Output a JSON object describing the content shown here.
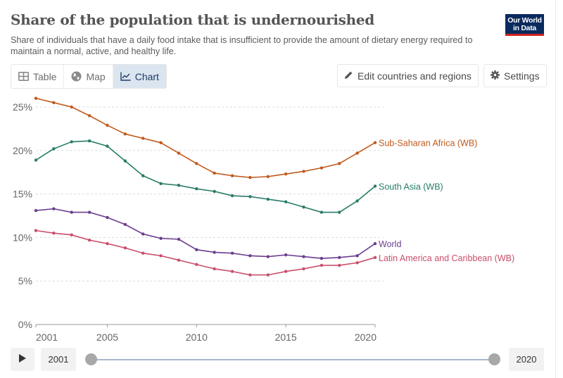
{
  "header": {
    "title": "Share of the population that is undernourished",
    "subtitle": "Share of individuals that have a daily food intake that is insufficient to provide the amount of dietary energy required to maintain a normal, active, and healthy life.",
    "logo_line1": "Our World",
    "logo_line2": "in Data"
  },
  "tabs": [
    {
      "label": "Table",
      "icon": "table-icon",
      "active": false
    },
    {
      "label": "Map",
      "icon": "globe-icon",
      "active": false
    },
    {
      "label": "Chart",
      "icon": "line-chart-icon",
      "active": true
    }
  ],
  "toolbar": {
    "edit_label": "Edit countries and regions",
    "settings_label": "Settings"
  },
  "timeline": {
    "start_year": "2001",
    "end_year": "2020",
    "range_start_fraction": 0,
    "range_end_fraction": 1
  },
  "colors": {
    "logo_bg": "#0a2a5e",
    "logo_accent": "#ce261e",
    "active_tab": "#dbe5f0"
  },
  "chart_data": {
    "type": "line",
    "title": "Share of the population that is undernourished",
    "xlabel": "",
    "ylabel": "",
    "x": [
      2001,
      2002,
      2003,
      2004,
      2005,
      2006,
      2007,
      2008,
      2009,
      2010,
      2011,
      2012,
      2013,
      2014,
      2015,
      2016,
      2017,
      2018,
      2019,
      2020
    ],
    "xlim": [
      2001,
      2020
    ],
    "ylim": [
      0,
      25
    ],
    "y_ticks": [
      0,
      5,
      10,
      15,
      20,
      25
    ],
    "y_tick_labels": [
      "0%",
      "5%",
      "10%",
      "15%",
      "20%",
      "25%"
    ],
    "x_ticks": [
      2001,
      2005,
      2010,
      2015,
      2020
    ],
    "x_tick_labels": [
      "2001",
      "2005",
      "2010",
      "2015",
      "2020"
    ],
    "grid": "horizontal dashed",
    "legend": "inline-right",
    "series": [
      {
        "name": "Sub-Saharan Africa (WB)",
        "color": "#c15a1b",
        "values": [
          26.0,
          25.5,
          25.0,
          24.0,
          22.9,
          21.9,
          21.4,
          20.9,
          19.7,
          18.5,
          17.4,
          17.1,
          16.9,
          17.0,
          17.3,
          17.6,
          18.0,
          18.5,
          19.7,
          20.9
        ]
      },
      {
        "name": "South Asia (WB)",
        "color": "#287c67",
        "values": [
          18.9,
          20.2,
          21.0,
          21.1,
          20.5,
          18.8,
          17.1,
          16.2,
          16.0,
          15.6,
          15.3,
          14.8,
          14.7,
          14.4,
          14.1,
          13.5,
          12.9,
          12.9,
          14.2,
          15.9
        ]
      },
      {
        "name": "World",
        "color": "#6b3d8f",
        "values": [
          13.1,
          13.3,
          12.9,
          12.9,
          12.3,
          11.5,
          10.4,
          9.9,
          9.8,
          8.6,
          8.3,
          8.2,
          7.9,
          7.8,
          8.0,
          7.8,
          7.6,
          7.7,
          7.9,
          9.3
        ]
      },
      {
        "name": "Latin America and Caribbean (WB)",
        "color": "#c94f6b",
        "values": [
          10.8,
          10.5,
          10.3,
          9.7,
          9.3,
          8.8,
          8.2,
          7.9,
          7.4,
          6.9,
          6.4,
          6.1,
          5.7,
          5.7,
          6.1,
          6.4,
          6.8,
          6.8,
          7.1,
          7.7
        ]
      }
    ]
  }
}
